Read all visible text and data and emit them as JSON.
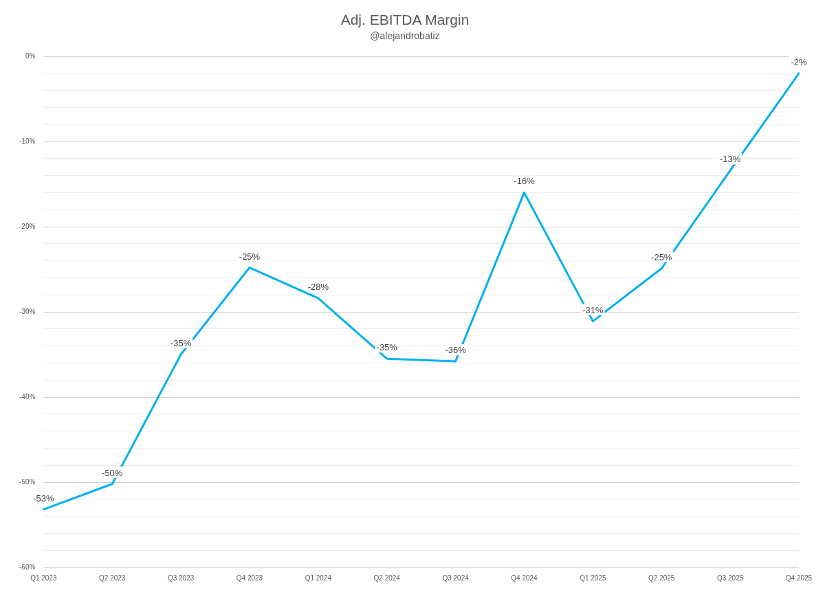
{
  "chart_data": {
    "type": "line",
    "title": "Adj. EBITDA Margin",
    "subtitle": "@alejandrobatiz",
    "categories": [
      "Q1 2023",
      "Q2 2023",
      "Q3 2023",
      "Q4 2023",
      "Q1 2024",
      "Q2 2024",
      "Q3 2024",
      "Q4 2024",
      "Q1 2025",
      "Q2 2025",
      "Q3 2025",
      "Q4 2025"
    ],
    "series": [
      {
        "color": "#00b0f0",
        "values": [
          -53.2,
          -50.2,
          -35.0,
          -24.8,
          -28.4,
          -35.5,
          -35.8,
          -16.0,
          -31.1,
          -24.9,
          -13.4,
          -2.0
        ],
        "value_labels": [
          "-53%",
          "-50%",
          "-35%",
          "-25%",
          "-28%",
          "-35%",
          "-36%",
          "-16%",
          "-31%",
          "-25%",
          "-13%",
          "-2%"
        ]
      }
    ],
    "ylim": [
      -60,
      0
    ],
    "yticks": [
      {
        "value": -60,
        "label": "-60%"
      },
      {
        "value": -58,
        "label": null
      },
      {
        "value": -56,
        "label": null
      },
      {
        "value": -54,
        "label": null
      },
      {
        "value": -52,
        "label": null
      },
      {
        "value": -50,
        "label": "-50%"
      },
      {
        "value": -48,
        "label": null
      },
      {
        "value": -46,
        "label": null
      },
      {
        "value": -44,
        "label": null
      },
      {
        "value": -42,
        "label": null
      },
      {
        "value": -40,
        "label": "-40%"
      },
      {
        "value": -38,
        "label": null
      },
      {
        "value": -36,
        "label": null
      },
      {
        "value": -34,
        "label": null
      },
      {
        "value": -32,
        "label": null
      },
      {
        "value": -30,
        "label": "-30%"
      },
      {
        "value": -28,
        "label": null
      },
      {
        "value": -26,
        "label": null
      },
      {
        "value": -24,
        "label": null
      },
      {
        "value": -22,
        "label": null
      },
      {
        "value": -20,
        "label": "-20%"
      },
      {
        "value": -18,
        "label": null
      },
      {
        "value": -16,
        "label": null
      },
      {
        "value": -14,
        "label": null
      },
      {
        "value": -12,
        "label": null
      },
      {
        "value": -10,
        "label": "-10%"
      },
      {
        "value": -8,
        "label": null
      },
      {
        "value": -6,
        "label": null
      },
      {
        "value": -4,
        "label": null
      },
      {
        "value": -2,
        "label": null
      },
      {
        "value": 0,
        "label": "0%"
      }
    ],
    "grid": "y",
    "legend": false,
    "marker": "none",
    "line_style": "solid"
  }
}
